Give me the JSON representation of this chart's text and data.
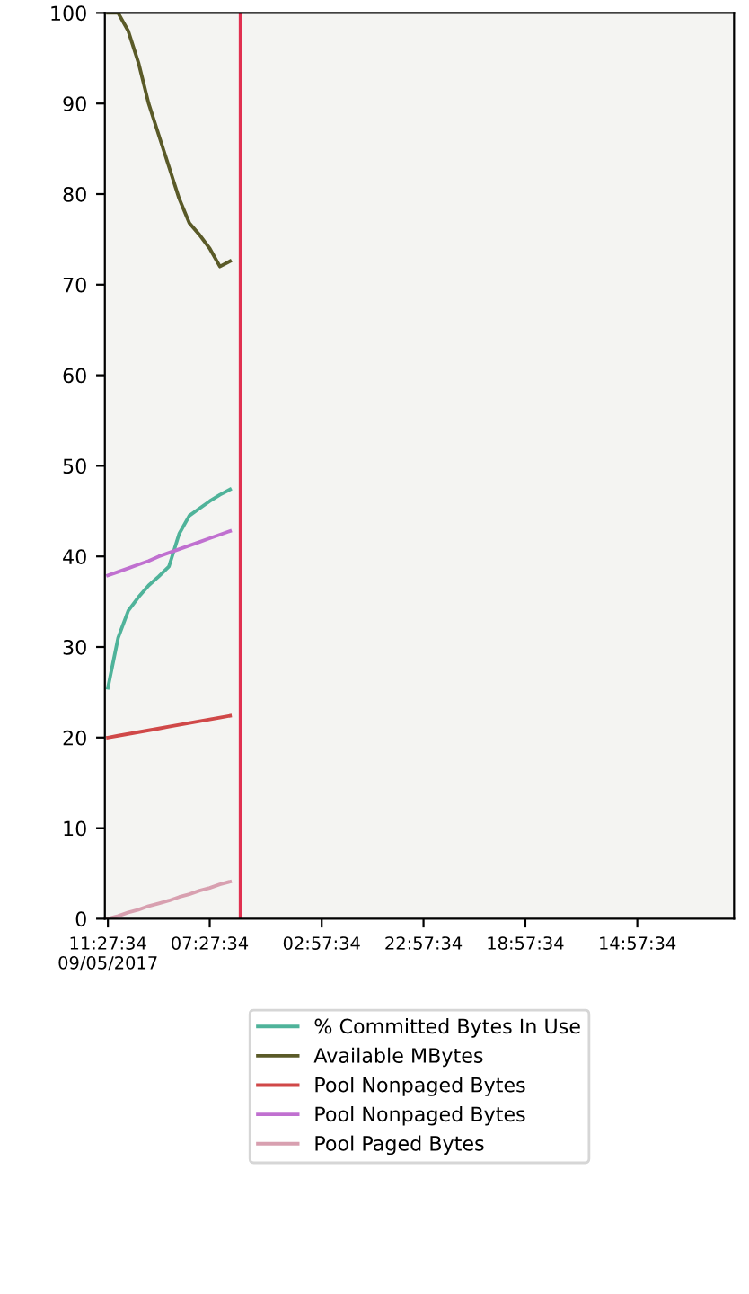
{
  "chart_data": {
    "type": "line",
    "categories": [
      "11:27:34\n09/05/2017",
      null,
      null,
      null,
      null,
      null,
      null,
      null,
      null,
      null,
      "07:27:34",
      null,
      null,
      null,
      null,
      null,
      null,
      null,
      null,
      null,
      null,
      "02:57:34",
      null,
      null,
      null,
      null,
      null,
      null,
      null,
      null,
      null,
      "22:57:34",
      null,
      null,
      null,
      null,
      null,
      null,
      null,
      null,
      null,
      "18:57:34",
      null,
      null,
      null,
      null,
      null,
      null,
      null,
      null,
      null,
      null,
      "14:57:34",
      null,
      null,
      null,
      null,
      null,
      null,
      null,
      null,
      null
    ],
    "ylim": [
      0,
      100
    ],
    "yticks": [
      0,
      10,
      20,
      30,
      40,
      50,
      60,
      70,
      80,
      90,
      100
    ],
    "grid": false,
    "legend": "bottom",
    "marker": "none",
    "line_style": "solid",
    "series": [
      {
        "name": "% Committed Bytes In Use",
        "color": "#4fb39a",
        "values": [
          25.5,
          31,
          34,
          35.5,
          36.8,
          37.8,
          38.9,
          42.5,
          44.5,
          45.3,
          46.1,
          46.8,
          47.4,
          null,
          null,
          null,
          null,
          null,
          null,
          null,
          null,
          null,
          null,
          null,
          null,
          null,
          null,
          null,
          null,
          null,
          null,
          null,
          null,
          null,
          null,
          null,
          null,
          null,
          null,
          null,
          null,
          null,
          null,
          null,
          null,
          null,
          null,
          null,
          null,
          null,
          null,
          null,
          null,
          null,
          null,
          null,
          null,
          null,
          null,
          null,
          null,
          null
        ]
      },
      {
        "name": "Available MBytes",
        "color": "#5a5a28",
        "values": [
          100,
          100,
          98,
          94.5,
          90,
          86.5,
          83,
          79.5,
          76.8,
          75.5,
          74,
          72,
          72.6,
          null,
          null,
          null,
          null,
          null,
          null,
          null,
          null,
          null,
          null,
          null,
          null,
          null,
          null,
          null,
          null,
          null,
          null,
          null,
          null,
          null,
          null,
          null,
          null,
          null,
          null,
          null,
          null,
          null,
          null,
          null,
          null,
          null,
          null,
          null,
          null,
          null,
          null,
          null,
          null,
          null,
          null,
          null,
          null,
          null,
          null,
          null,
          null,
          null
        ]
      },
      {
        "name": "Pool Nonpaged Bytes",
        "color": "#d04848",
        "values": [
          20,
          20.2,
          20.4,
          20.6,
          20.8,
          21,
          21.2,
          21.4,
          21.6,
          21.8,
          22,
          22.2,
          22.4,
          null,
          null,
          null,
          null,
          null,
          null,
          null,
          null,
          null,
          null,
          null,
          null,
          null,
          null,
          null,
          null,
          null,
          null,
          null,
          null,
          null,
          null,
          null,
          null,
          null,
          null,
          null,
          null,
          null,
          null,
          null,
          null,
          null,
          null,
          null,
          null,
          null,
          null,
          null,
          null,
          null,
          null,
          null,
          null,
          null,
          null,
          null,
          null,
          null
        ]
      },
      {
        "name": "Pool Nonpaged Bytes",
        "color": "#c070d0",
        "values": [
          37.9,
          38.3,
          38.7,
          39.1,
          39.5,
          40,
          40.4,
          40.8,
          41.2,
          41.6,
          42,
          42.4,
          42.8,
          null,
          null,
          null,
          null,
          null,
          null,
          null,
          null,
          null,
          null,
          null,
          null,
          null,
          null,
          null,
          null,
          null,
          null,
          null,
          null,
          null,
          null,
          null,
          null,
          null,
          null,
          null,
          null,
          null,
          null,
          null,
          null,
          null,
          null,
          null,
          null,
          null,
          null,
          null,
          null,
          null,
          null,
          null,
          null,
          null,
          null,
          null,
          null,
          null
        ]
      },
      {
        "name": "Pool Paged Bytes",
        "color": "#d8a0b0",
        "values": [
          0,
          0.3,
          0.7,
          1,
          1.4,
          1.7,
          2,
          2.4,
          2.7,
          3.1,
          3.4,
          3.8,
          4.1,
          null,
          null,
          null,
          null,
          null,
          null,
          null,
          null,
          null,
          null,
          null,
          null,
          null,
          null,
          null,
          null,
          null,
          null,
          null,
          null,
          null,
          null,
          null,
          null,
          null,
          null,
          null,
          null,
          null,
          null,
          null,
          null,
          null,
          null,
          null,
          null,
          null,
          null,
          null,
          null,
          null,
          null,
          null,
          null,
          null,
          null,
          null,
          null,
          null
        ]
      }
    ]
  }
}
